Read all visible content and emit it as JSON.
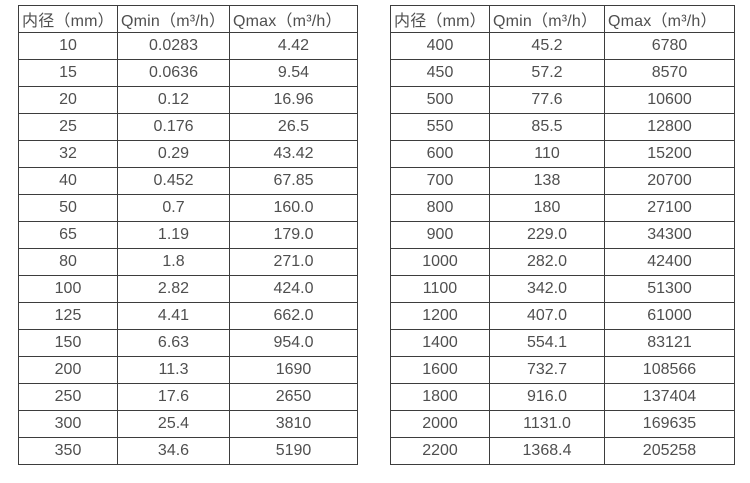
{
  "colors": {
    "background": "#ffffff",
    "border": "#3d3d3d",
    "text": "#4f4f4f"
  },
  "chart_data": [
    {
      "type": "table",
      "title": "",
      "columns": [
        "内径（mm）",
        "Qmin（m³/h）",
        "Qmax（m³/h）"
      ],
      "rows": [
        [
          "10",
          "0.0283",
          "4.42"
        ],
        [
          "15",
          "0.0636",
          "9.54"
        ],
        [
          "20",
          "0.12",
          "16.96"
        ],
        [
          "25",
          "0.176",
          "26.5"
        ],
        [
          "32",
          "0.29",
          "43.42"
        ],
        [
          "40",
          "0.452",
          "67.85"
        ],
        [
          "50",
          "0.7",
          "160.0"
        ],
        [
          "65",
          "1.19",
          "179.0"
        ],
        [
          "80",
          "1.8",
          "271.0"
        ],
        [
          "100",
          "2.82",
          "424.0"
        ],
        [
          "125",
          "4.41",
          "662.0"
        ],
        [
          "150",
          "6.63",
          "954.0"
        ],
        [
          "200",
          "11.3",
          "1690"
        ],
        [
          "250",
          "17.6",
          "2650"
        ],
        [
          "300",
          "25.4",
          "3810"
        ],
        [
          "350",
          "34.6",
          "5190"
        ]
      ]
    },
    {
      "type": "table",
      "title": "",
      "columns": [
        "内径（mm）",
        "Qmin（m³/h）",
        "Qmax（m³/h）"
      ],
      "rows": [
        [
          "400",
          "45.2",
          "6780"
        ],
        [
          "450",
          "57.2",
          "8570"
        ],
        [
          "500",
          "77.6",
          "10600"
        ],
        [
          "550",
          "85.5",
          "12800"
        ],
        [
          "600",
          "110",
          "15200"
        ],
        [
          "700",
          "138",
          "20700"
        ],
        [
          "800",
          "180",
          "27100"
        ],
        [
          "900",
          "229.0",
          "34300"
        ],
        [
          "1000",
          "282.0",
          "42400"
        ],
        [
          "1100",
          "342.0",
          "51300"
        ],
        [
          "1200",
          "407.0",
          "61000"
        ],
        [
          "1400",
          "554.1",
          "83121"
        ],
        [
          "1600",
          "732.7",
          "108566"
        ],
        [
          "1800",
          "916.0",
          "137404"
        ],
        [
          "2000",
          "1131.0",
          "169635"
        ],
        [
          "2200",
          "1368.4",
          "205258"
        ]
      ]
    }
  ]
}
